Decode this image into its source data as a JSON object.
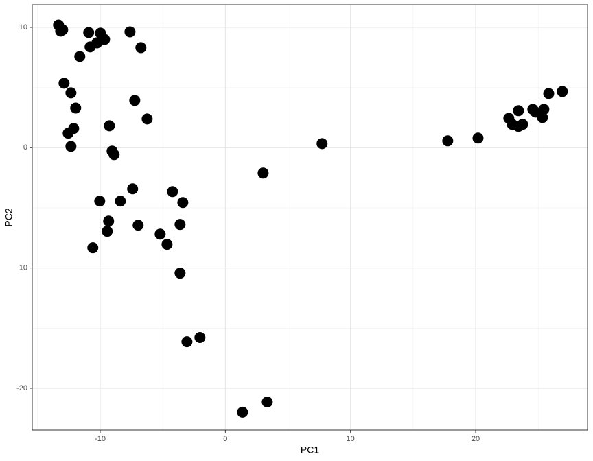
{
  "chart_data": {
    "type": "scatter",
    "x_label": "PC1",
    "y_label": "PC2",
    "x": [
      -13.33,
      -13.16,
      -13.0,
      -10.92,
      -9.98,
      -10.26,
      -10.81,
      -9.65,
      -7.62,
      -6.75,
      -11.63,
      -12.89,
      -12.34,
      -11.96,
      -7.24,
      -6.25,
      -9.27,
      -12.12,
      -12.56,
      -12.34,
      -9.05,
      -8.89,
      3.02,
      7.73,
      -7.41,
      -4.22,
      -3.4,
      -10.04,
      -8.39,
      -9.33,
      -6.97,
      -3.62,
      -9.44,
      -5.21,
      -4.66,
      -10.59,
      -3.62,
      -2.03,
      -3.07,
      1.37,
      3.35,
      17.77,
      20.19,
      22.65,
      22.93,
      23.42,
      23.75,
      23.42,
      24.57,
      24.79,
      25.45,
      25.34,
      25.84,
      26.93
    ],
    "values": [
      10.2,
      9.69,
      9.8,
      9.57,
      9.52,
      8.72,
      8.38,
      9.0,
      9.63,
      8.32,
      7.58,
      5.36,
      4.56,
      3.3,
      3.93,
      2.39,
      1.82,
      1.6,
      1.2,
      0.11,
      -0.28,
      -0.57,
      -2.11,
      0.34,
      -3.42,
      -3.65,
      -4.56,
      -4.44,
      -4.44,
      -6.1,
      -6.44,
      -6.38,
      -6.95,
      -7.18,
      -8.03,
      -8.32,
      -10.43,
      -15.78,
      -16.13,
      -21.99,
      -21.14,
      0.57,
      0.8,
      2.45,
      1.94,
      1.77,
      1.94,
      3.08,
      3.19,
      2.96,
      3.19,
      2.51,
      4.5,
      4.67
    ],
    "color": "#000000",
    "xlim": [
      -15.43,
      28.94
    ],
    "ylim": [
      -23.48,
      11.88
    ],
    "xticks": [
      -10,
      0,
      10,
      20
    ],
    "yticks": [
      -20,
      -10,
      0,
      10
    ],
    "grid": true
  }
}
